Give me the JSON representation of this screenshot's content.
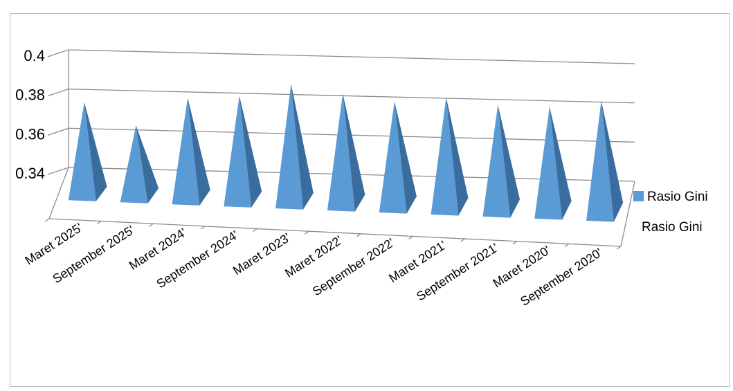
{
  "chart_data": {
    "type": "bar",
    "bar_shape": "pyramid-3d",
    "categories": [
      "Maret 2025'",
      "September 2025'",
      "Maret 2024'",
      "September 2024'",
      "Maret 2023'",
      "Maret 2022'",
      "September 2022'",
      "Maret 2021'",
      "September 2021'",
      "Maret 2020'",
      "September 2020'"
    ],
    "series": [
      {
        "name": "Rasio Gini",
        "values": [
          0.375,
          0.364,
          0.379,
          0.381,
          0.388,
          0.384,
          0.381,
          0.384,
          0.381,
          0.381,
          0.385
        ],
        "color": "#5b9bd5"
      }
    ],
    "depth_axis_label": "Rasio Gini",
    "yticks": [
      "0.34",
      "0.36",
      "0.38",
      "0.4"
    ],
    "ylim": [
      0.34,
      0.4
    ],
    "grid": true,
    "legend": {
      "position": "right",
      "entries": [
        "Rasio Gini"
      ]
    }
  }
}
